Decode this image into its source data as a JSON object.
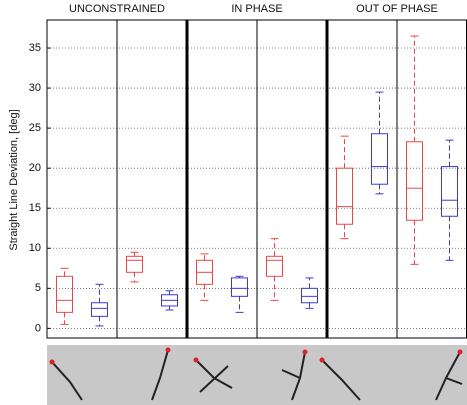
{
  "chart_data": {
    "type": "box",
    "y_label": "Straight Line Deviation, [deg]",
    "groups": [
      "UNCONSTRAINED",
      "IN PHASE",
      "OUT OF PHASE"
    ],
    "ylim": [
      -1.2,
      38.5
    ],
    "yticks": [
      0,
      5,
      10,
      15,
      20,
      25,
      30,
      35
    ],
    "grid": true,
    "series": [
      {
        "color": "#e8474a",
        "boxes": [
          {
            "min": 0.5,
            "q1": 2,
            "median": 3.5,
            "q3": 6.5,
            "max": 7.5
          },
          {
            "min": 5.8,
            "q1": 7,
            "median": 8.5,
            "q3": 9,
            "max": 9.5
          },
          {
            "min": 3.5,
            "q1": 5.5,
            "median": 7,
            "q3": 8.5,
            "max": 9.3
          },
          {
            "min": 3.5,
            "q1": 6.5,
            "median": 8.5,
            "q3": 9,
            "max": 11.2
          },
          {
            "min": 11.2,
            "q1": 13,
            "median": 15.2,
            "q3": 20,
            "max": 24
          },
          {
            "min": 8,
            "q1": 13.5,
            "median": 17.5,
            "q3": 23.3,
            "max": 36.5
          }
        ]
      },
      {
        "color": "#3a3ad8",
        "boxes": [
          {
            "min": 0.3,
            "q1": 1.5,
            "median": 2.5,
            "q3": 3.2,
            "max": 5.5
          },
          {
            "min": 2.3,
            "q1": 2.8,
            "median": 3.5,
            "q3": 4.2,
            "max": 4.7
          },
          {
            "min": 2,
            "q1": 4,
            "median": 5,
            "q3": 6.3,
            "max": 6.5
          },
          {
            "min": 2.5,
            "q1": 3.2,
            "median": 4,
            "q3": 5,
            "max": 6.3
          },
          {
            "min": 16.8,
            "q1": 18,
            "median": 20.2,
            "q3": 24.3,
            "max": 29.5
          },
          {
            "min": 8.5,
            "q1": 14,
            "median": 16,
            "q3": 20.2,
            "max": 23.5
          }
        ]
      }
    ]
  }
}
